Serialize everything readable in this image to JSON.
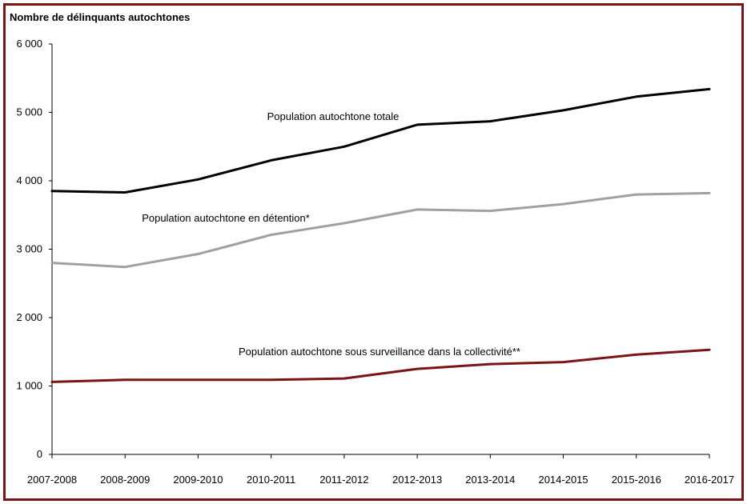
{
  "chart_data": {
    "type": "line",
    "ylabel": "Nombre de délinquants autochtones",
    "ylim": [
      0,
      6000
    ],
    "yticks": [
      0,
      1000,
      2000,
      3000,
      4000,
      5000,
      6000
    ],
    "ytick_labels": [
      "0",
      "1 000",
      "2 000",
      "3 000",
      "4 000",
      "5 000",
      "6 000"
    ],
    "categories": [
      "2007-2008",
      "2008-2009",
      "2009-2010",
      "2010-2011",
      "2011-2012",
      "2012-2013",
      "2013-2014",
      "2014-2015",
      "2015-2016",
      "2016-2017"
    ],
    "grid": false,
    "series": [
      {
        "name": "Population autochtone totale",
        "color": "#000000",
        "values": [
          3850,
          3830,
          4020,
          4300,
          4500,
          4820,
          4870,
          5030,
          5230,
          5340
        ]
      },
      {
        "name": "Population autochtone en détention*",
        "color": "#a0a0a0",
        "values": [
          2800,
          2740,
          2930,
          3210,
          3380,
          3580,
          3560,
          3660,
          3800,
          3820
        ]
      },
      {
        "name": "Population autochtone sous surveillance dans la collectivité**",
        "color": "#7b1416",
        "values": [
          1060,
          1090,
          1090,
          1090,
          1110,
          1250,
          1320,
          1350,
          1460,
          1530
        ]
      }
    ]
  }
}
